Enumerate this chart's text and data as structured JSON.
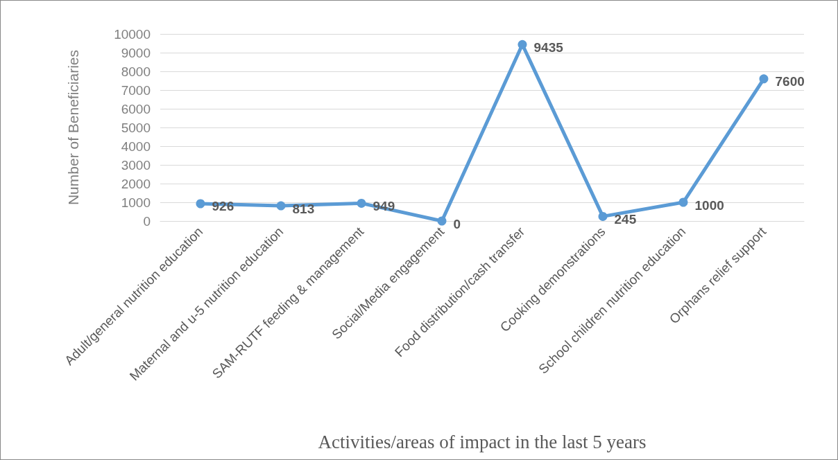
{
  "chart_data": {
    "type": "line",
    "xlabel": "Activities/areas of impact in the last 5 years",
    "ylabel": "Number of Beneficiaries",
    "categories": [
      "Adult/general nutrition education",
      "Maternal and u-5 nutrition education",
      "SAM-RUTF feeding & management",
      "Social/Media engagement",
      "Food distribution/cash transfer",
      "Cooking demonstrations",
      "School children nutrition education",
      "Orphans relief support"
    ],
    "series": [
      {
        "color": "#5b9bd5",
        "values": [
          926,
          813,
          949,
          0,
          9435,
          245,
          1000,
          7600
        ]
      }
    ],
    "ylim": [
      0,
      10000
    ],
    "yticks": [
      0,
      1000,
      2000,
      3000,
      4000,
      5000,
      6000,
      7000,
      8000,
      9000,
      10000
    ],
    "grid": "y",
    "marker": "circle",
    "line_style": "solid",
    "data_labels": true
  }
}
